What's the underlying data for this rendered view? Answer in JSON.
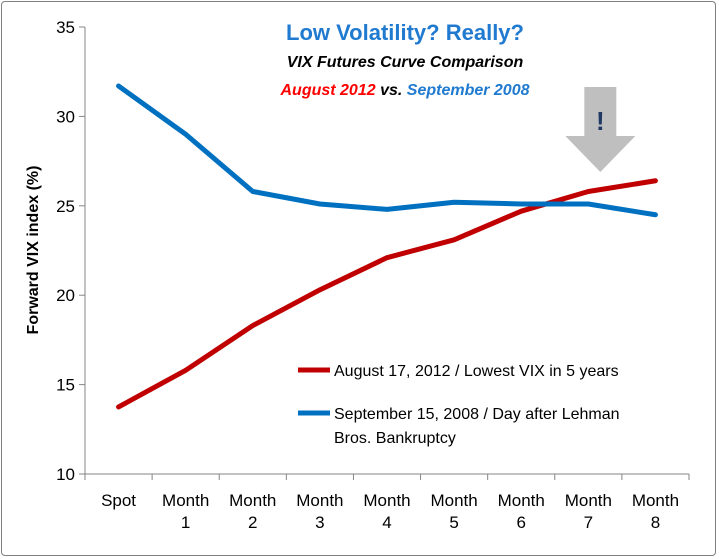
{
  "chart_data": {
    "type": "line",
    "title": "Low Volatility? Really?",
    "subtitle": "VIX Futures Curve Comparison",
    "subtitle2": {
      "part1": "August 2012",
      "part2": " vs. ",
      "part3": "September 2008"
    },
    "ylabel": "Forward VIX index (%)",
    "xlabel": "",
    "ylim": [
      10,
      35
    ],
    "yticks": [
      10,
      15,
      20,
      25,
      30,
      35
    ],
    "categories": [
      [
        "Spot"
      ],
      [
        "Month",
        "1"
      ],
      [
        "Month",
        "2"
      ],
      [
        "Month",
        "3"
      ],
      [
        "Month",
        "4"
      ],
      [
        "Month",
        "5"
      ],
      [
        "Month",
        "6"
      ],
      [
        "Month",
        "7"
      ],
      [
        "Month",
        "8"
      ]
    ],
    "series": [
      {
        "name": "August 17, 2012 / Lowest VIX in 5 years",
        "legend_lines": [
          "August 17, 2012 / Lowest VIX in 5 years"
        ],
        "color": "#c00000",
        "values": [
          13.75,
          15.8,
          18.3,
          20.3,
          22.1,
          23.1,
          24.7,
          25.8,
          26.4
        ]
      },
      {
        "name": "September 15, 2008 / Day after Lehman Bros. Bankruptcy",
        "legend_lines": [
          "September 15, 2008 / Day after Lehman",
          "Bros. Bankruptcy"
        ],
        "color": "#0070c0",
        "values": [
          31.7,
          29.0,
          25.8,
          25.1,
          24.8,
          25.2,
          25.1,
          25.1,
          24.5
        ]
      }
    ],
    "annotation": {
      "text": "!",
      "at_category": 7
    },
    "grid": false,
    "legend_position": "bottom-right"
  },
  "colors": {
    "title_blue": "#1f7ad0",
    "red": "#ff0000",
    "arrow": "#bfbfbf",
    "exclaim": "#1f3864"
  }
}
